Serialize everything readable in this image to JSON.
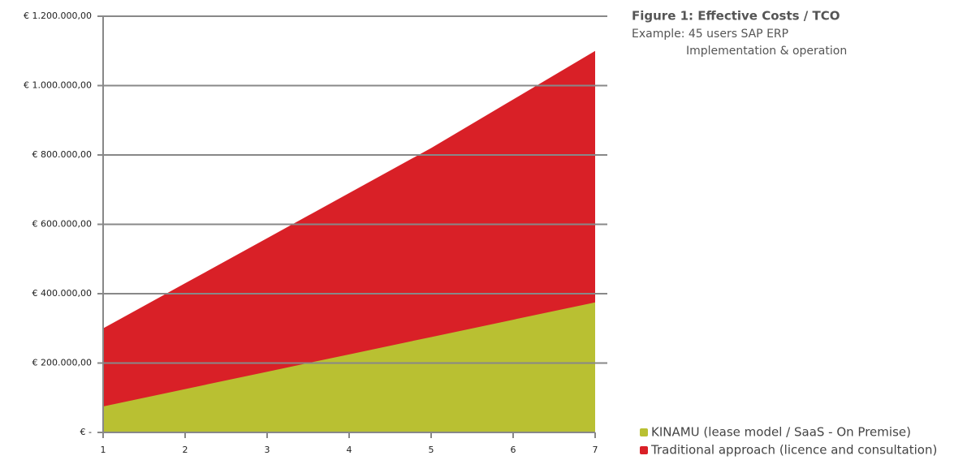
{
  "chart_data": {
    "type": "area",
    "title": "Figure 1: Effective Costs / TCO",
    "subtitle": "Example:  45 users SAP ERP",
    "subtitle2": "Implementation & operation",
    "x": [
      1,
      2,
      3,
      4,
      5,
      6,
      7
    ],
    "xlim": [
      1,
      7
    ],
    "xticks": [
      1,
      2,
      3,
      4,
      5,
      6,
      7
    ],
    "ylim": [
      0,
      1200000
    ],
    "yticks": [
      {
        "value": 0,
        "label": "€ -"
      },
      {
        "value": 200000,
        "label": "€ 200.000,00"
      },
      {
        "value": 400000,
        "label": "€ 400.000,00"
      },
      {
        "value": 600000,
        "label": "€ 600.000,00"
      },
      {
        "value": 800000,
        "label": "€ 800.000,00"
      },
      {
        "value": 1000000,
        "label": "€ 1.000.000,00"
      },
      {
        "value": 1200000,
        "label": "€ 1.200.000,00"
      }
    ],
    "grid": true,
    "legend": "bottom-right",
    "series": [
      {
        "name": "KINAMU (lease model / SaaS - On Premise)",
        "color": "#b9c032",
        "values": [
          75000,
          125000,
          175000,
          225000,
          275000,
          325000,
          375000
        ]
      },
      {
        "name": "Traditional approach (licence and consultation)",
        "color": "#d92027",
        "values": [
          300000,
          430000,
          560000,
          690000,
          820000,
          960000,
          1100000
        ]
      }
    ]
  }
}
